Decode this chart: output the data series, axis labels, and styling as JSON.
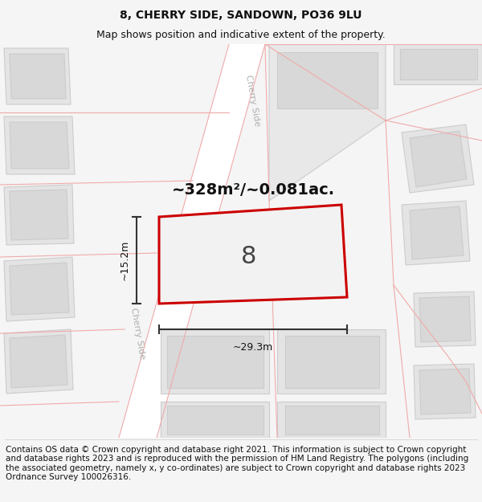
{
  "title_line1": "8, CHERRY SIDE, SANDOWN, PO36 9LU",
  "title_line2": "Map shows position and indicative extent of the property.",
  "area_label": "~328m²/~0.081ac.",
  "plot_number": "8",
  "dim_width": "~29.3m",
  "dim_height": "~15.2m",
  "road_label_upper": "Cherry Side",
  "road_label_lower": "Cherry Side",
  "footer_text": "Contains OS data © Crown copyright and database right 2021. This information is subject to Crown copyright and database rights 2023 and is reproduced with the permission of HM Land Registry. The polygons (including the associated geometry, namely x, y co-ordinates) are subject to Crown copyright and database rights 2023 Ordnance Survey 100026316.",
  "bg_color": "#f5f5f5",
  "road_fill": "#ffffff",
  "building_fill": "#e4e4e4",
  "building_edge": "#cccccc",
  "building_inner_fill": "#d8d8d8",
  "plot_fill": "#eeeeee",
  "plot_edge": "#cc0000",
  "road_line_color": "#f0aaaa",
  "dim_color": "#333333",
  "text_color": "#111111",
  "road_label_color": "#b0b0b0",
  "title_fontsize": 10,
  "subtitle_fontsize": 9,
  "footer_fontsize": 7.5,
  "area_fontsize": 14,
  "plot_num_fontsize": 22,
  "dim_fontsize": 9,
  "road_label_fontsize": 8
}
